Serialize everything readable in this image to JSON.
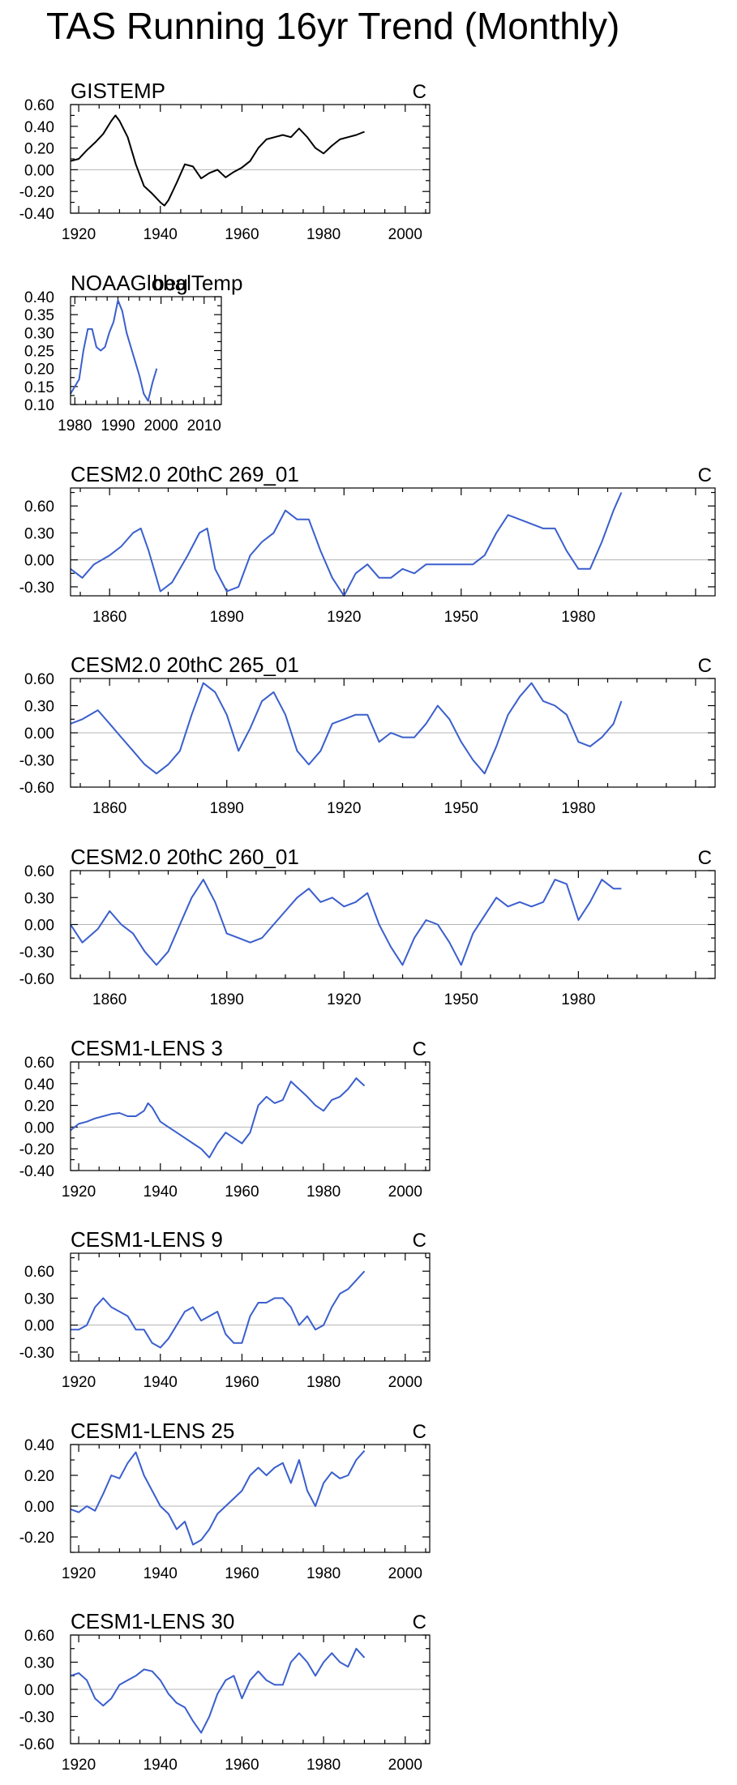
{
  "title": "TAS Running 16yr Trend (Monthly)",
  "colors": {
    "observed": "#000000",
    "model": "#3a5fcd",
    "zero_line": "#b4b4b4",
    "frame": "#000000"
  },
  "chart_data": [
    {
      "type": "line",
      "title": "GISTEMP",
      "unit": "C",
      "color": "#000000",
      "xlim": [
        1918,
        2006
      ],
      "ylim": [
        -0.4,
        0.6
      ],
      "xticks": [
        1920,
        1940,
        1960,
        1980,
        2000
      ],
      "yticks": [
        -0.4,
        -0.2,
        0.0,
        0.2,
        0.4,
        0.6
      ],
      "ytick_labels": [
        "-0.40",
        "-0.20",
        "0.00",
        "0.20",
        "0.40",
        "0.60"
      ],
      "zero_line": true,
      "series": [
        {
          "x": [
            1918,
            1920,
            1922,
            1924,
            1926,
            1928,
            1929,
            1930,
            1932,
            1934,
            1936,
            1938,
            1940,
            1941,
            1942,
            1944,
            1946,
            1948,
            1950,
            1952,
            1954,
            1956,
            1958,
            1960,
            1962,
            1964,
            1966,
            1968,
            1970,
            1972,
            1974,
            1976,
            1978,
            1980,
            1982,
            1984,
            1986,
            1988,
            1990
          ],
          "y": [
            0.08,
            0.1,
            0.18,
            0.25,
            0.33,
            0.45,
            0.5,
            0.45,
            0.3,
            0.05,
            -0.15,
            -0.22,
            -0.3,
            -0.33,
            -0.28,
            -0.12,
            0.05,
            0.03,
            -0.08,
            -0.03,
            0.0,
            -0.07,
            -0.02,
            0.02,
            0.08,
            0.2,
            0.28,
            0.3,
            0.32,
            0.3,
            0.38,
            0.3,
            0.2,
            0.15,
            0.22,
            0.28,
            0.3,
            0.32,
            0.35
          ]
        }
      ]
    },
    {
      "type": "line",
      "title": "NOAAGlobalTemp",
      "subtitle": "beg",
      "unit": "",
      "color": "#3a5fcd",
      "xlim": [
        1979,
        2014
      ],
      "ylim": [
        0.1,
        0.4
      ],
      "xticks": [
        1980,
        1990,
        2000,
        2010
      ],
      "yticks": [
        0.1,
        0.15,
        0.2,
        0.25,
        0.3,
        0.35,
        0.4
      ],
      "ytick_labels": [
        "0.10",
        "0.15",
        "0.20",
        "0.25",
        "0.30",
        "0.35",
        "0.40"
      ],
      "zero_line": false,
      "series": [
        {
          "x": [
            1979,
            1980,
            1981,
            1982,
            1983,
            1984,
            1985,
            1986,
            1987,
            1988,
            1989,
            1990,
            1991,
            1992,
            1993,
            1994,
            1995,
            1996,
            1997,
            1998,
            1999
          ],
          "y": [
            0.13,
            0.15,
            0.17,
            0.25,
            0.31,
            0.31,
            0.26,
            0.25,
            0.26,
            0.3,
            0.33,
            0.39,
            0.36,
            0.3,
            0.26,
            0.22,
            0.18,
            0.13,
            0.11,
            0.16,
            0.2
          ]
        }
      ]
    },
    {
      "type": "line",
      "title": "CESM2.0 20thC 269_01",
      "unit": "C",
      "color": "#3a5fcd",
      "xlim": [
        1850,
        2015
      ],
      "ylim": [
        -0.4,
        0.8
      ],
      "xticks": [
        1860,
        1890,
        1920,
        1950,
        1980
      ],
      "yticks": [
        -0.3,
        0.0,
        0.3,
        0.6
      ],
      "ytick_labels": [
        "-0.30",
        "0.00",
        "0.30",
        "0.60"
      ],
      "zero_line": true,
      "series": [
        {
          "x": [
            1850,
            1853,
            1856,
            1860,
            1863,
            1866,
            1868,
            1870,
            1873,
            1876,
            1880,
            1883,
            1885,
            1887,
            1890,
            1893,
            1896,
            1899,
            1902,
            1905,
            1908,
            1911,
            1914,
            1917,
            1920,
            1923,
            1926,
            1929,
            1932,
            1935,
            1938,
            1941,
            1944,
            1947,
            1950,
            1953,
            1956,
            1959,
            1962,
            1965,
            1968,
            1971,
            1974,
            1977,
            1980,
            1983,
            1986,
            1989,
            1991
          ],
          "y": [
            -0.1,
            -0.2,
            -0.05,
            0.05,
            0.15,
            0.3,
            0.35,
            0.1,
            -0.35,
            -0.25,
            0.05,
            0.3,
            0.35,
            -0.1,
            -0.35,
            -0.3,
            0.05,
            0.2,
            0.3,
            0.55,
            0.45,
            0.45,
            0.1,
            -0.2,
            -0.4,
            -0.15,
            -0.05,
            -0.2,
            -0.2,
            -0.1,
            -0.15,
            -0.05,
            -0.05,
            -0.05,
            -0.05,
            -0.05,
            0.05,
            0.3,
            0.5,
            0.45,
            0.4,
            0.35,
            0.35,
            0.1,
            -0.1,
            -0.1,
            0.2,
            0.55,
            0.75
          ]
        }
      ]
    },
    {
      "type": "line",
      "title": "CESM2.0 20thC 265_01",
      "unit": "C",
      "color": "#3a5fcd",
      "xlim": [
        1850,
        2015
      ],
      "ylim": [
        -0.6,
        0.6
      ],
      "xticks": [
        1860,
        1890,
        1920,
        1950,
        1980
      ],
      "yticks": [
        -0.6,
        -0.3,
        0.0,
        0.3,
        0.6
      ],
      "ytick_labels": [
        "-0.60",
        "-0.30",
        "0.00",
        "0.30",
        "0.60"
      ],
      "zero_line": true,
      "series": [
        {
          "x": [
            1850,
            1853,
            1857,
            1860,
            1863,
            1866,
            1869,
            1872,
            1875,
            1878,
            1881,
            1884,
            1887,
            1890,
            1893,
            1896,
            1899,
            1902,
            1905,
            1908,
            1911,
            1914,
            1917,
            1920,
            1923,
            1926,
            1929,
            1932,
            1935,
            1938,
            1941,
            1944,
            1947,
            1950,
            1953,
            1956,
            1959,
            1962,
            1965,
            1968,
            1971,
            1974,
            1977,
            1980,
            1983,
            1986,
            1989,
            1991
          ],
          "y": [
            0.1,
            0.15,
            0.25,
            0.1,
            -0.05,
            -0.2,
            -0.35,
            -0.45,
            -0.35,
            -0.2,
            0.2,
            0.55,
            0.45,
            0.2,
            -0.2,
            0.05,
            0.35,
            0.45,
            0.2,
            -0.2,
            -0.35,
            -0.2,
            0.1,
            0.15,
            0.2,
            0.2,
            -0.1,
            0.0,
            -0.05,
            -0.05,
            0.1,
            0.3,
            0.15,
            -0.1,
            -0.3,
            -0.45,
            -0.15,
            0.2,
            0.4,
            0.55,
            0.35,
            0.3,
            0.2,
            -0.1,
            -0.15,
            -0.05,
            0.1,
            0.35
          ]
        }
      ]
    },
    {
      "type": "line",
      "title": "CESM2.0 20thC 260_01",
      "unit": "C",
      "color": "#3a5fcd",
      "xlim": [
        1850,
        2015
      ],
      "ylim": [
        -0.6,
        0.6
      ],
      "xticks": [
        1860,
        1890,
        1920,
        1950,
        1980
      ],
      "yticks": [
        -0.6,
        -0.3,
        0.0,
        0.3,
        0.6
      ],
      "ytick_labels": [
        "-0.60",
        "-0.30",
        "0.00",
        "0.30",
        "0.60"
      ],
      "zero_line": true,
      "series": [
        {
          "x": [
            1850,
            1853,
            1857,
            1860,
            1863,
            1866,
            1869,
            1872,
            1875,
            1878,
            1881,
            1884,
            1887,
            1890,
            1893,
            1896,
            1899,
            1902,
            1905,
            1908,
            1911,
            1914,
            1917,
            1920,
            1923,
            1926,
            1929,
            1932,
            1935,
            1938,
            1941,
            1944,
            1947,
            1950,
            1953,
            1956,
            1959,
            1962,
            1965,
            1968,
            1971,
            1974,
            1977,
            1980,
            1983,
            1986,
            1989,
            1991
          ],
          "y": [
            0.0,
            -0.2,
            -0.05,
            0.15,
            0.0,
            -0.1,
            -0.3,
            -0.45,
            -0.3,
            0.0,
            0.3,
            0.5,
            0.25,
            -0.1,
            -0.15,
            -0.2,
            -0.15,
            0.0,
            0.15,
            0.3,
            0.4,
            0.25,
            0.3,
            0.2,
            0.25,
            0.35,
            0.0,
            -0.25,
            -0.45,
            -0.15,
            0.05,
            0.0,
            -0.2,
            -0.45,
            -0.1,
            0.1,
            0.3,
            0.2,
            0.25,
            0.2,
            0.25,
            0.5,
            0.45,
            0.05,
            0.25,
            0.5,
            0.4,
            0.4
          ]
        }
      ]
    },
    {
      "type": "line",
      "title": "CESM1-LENS 3",
      "unit": "C",
      "color": "#3a5fcd",
      "xlim": [
        1918,
        2006
      ],
      "ylim": [
        -0.4,
        0.6
      ],
      "xticks": [
        1920,
        1940,
        1960,
        1980,
        2000
      ],
      "yticks": [
        -0.4,
        -0.2,
        0.0,
        0.2,
        0.4,
        0.6
      ],
      "ytick_labels": [
        "-0.40",
        "-0.20",
        "0.00",
        "0.20",
        "0.40",
        "0.60"
      ],
      "zero_line": true,
      "series": [
        {
          "x": [
            1918,
            1920,
            1922,
            1924,
            1926,
            1928,
            1930,
            1932,
            1934,
            1936,
            1937,
            1938,
            1940,
            1942,
            1944,
            1946,
            1948,
            1950,
            1952,
            1954,
            1956,
            1958,
            1960,
            1962,
            1964,
            1966,
            1968,
            1970,
            1972,
            1974,
            1976,
            1978,
            1980,
            1982,
            1984,
            1986,
            1988,
            1990
          ],
          "y": [
            -0.03,
            0.03,
            0.05,
            0.08,
            0.1,
            0.12,
            0.13,
            0.1,
            0.1,
            0.15,
            0.22,
            0.18,
            0.05,
            0.0,
            -0.05,
            -0.1,
            -0.15,
            -0.2,
            -0.28,
            -0.15,
            -0.05,
            -0.1,
            -0.15,
            -0.05,
            0.2,
            0.28,
            0.22,
            0.25,
            0.42,
            0.35,
            0.28,
            0.2,
            0.15,
            0.25,
            0.28,
            0.35,
            0.45,
            0.38
          ]
        }
      ]
    },
    {
      "type": "line",
      "title": "CESM1-LENS 9",
      "unit": "C",
      "color": "#3a5fcd",
      "xlim": [
        1918,
        2006
      ],
      "ylim": [
        -0.4,
        0.8
      ],
      "xticks": [
        1920,
        1940,
        1960,
        1980,
        2000
      ],
      "yticks": [
        -0.3,
        0.0,
        0.3,
        0.6
      ],
      "ytick_labels": [
        "-0.30",
        "0.00",
        "0.30",
        "0.60"
      ],
      "zero_line": true,
      "series": [
        {
          "x": [
            1918,
            1920,
            1922,
            1924,
            1926,
            1928,
            1930,
            1932,
            1934,
            1936,
            1938,
            1940,
            1942,
            1944,
            1946,
            1948,
            1950,
            1952,
            1954,
            1956,
            1958,
            1960,
            1962,
            1964,
            1966,
            1968,
            1970,
            1972,
            1974,
            1976,
            1978,
            1980,
            1982,
            1984,
            1986,
            1988,
            1990
          ],
          "y": [
            -0.05,
            -0.05,
            0.0,
            0.2,
            0.3,
            0.2,
            0.15,
            0.1,
            -0.05,
            -0.05,
            -0.2,
            -0.25,
            -0.15,
            0.0,
            0.15,
            0.2,
            0.05,
            0.1,
            0.15,
            -0.1,
            -0.2,
            -0.2,
            0.1,
            0.25,
            0.25,
            0.3,
            0.3,
            0.2,
            0.0,
            0.1,
            -0.05,
            0.0,
            0.2,
            0.35,
            0.4,
            0.5,
            0.6
          ]
        }
      ]
    },
    {
      "type": "line",
      "title": "CESM1-LENS 25",
      "unit": "C",
      "color": "#3a5fcd",
      "xlim": [
        1918,
        2006
      ],
      "ylim": [
        -0.3,
        0.4
      ],
      "xticks": [
        1920,
        1940,
        1960,
        1980,
        2000
      ],
      "yticks": [
        -0.2,
        0.0,
        0.2,
        0.4
      ],
      "ytick_labels": [
        "-0.20",
        "0.00",
        "0.20",
        "0.40"
      ],
      "zero_line": true,
      "series": [
        {
          "x": [
            1918,
            1920,
            1922,
            1924,
            1926,
            1928,
            1930,
            1932,
            1934,
            1936,
            1938,
            1940,
            1942,
            1944,
            1946,
            1948,
            1950,
            1952,
            1954,
            1956,
            1958,
            1960,
            1962,
            1964,
            1966,
            1968,
            1970,
            1972,
            1974,
            1976,
            1978,
            1980,
            1982,
            1984,
            1986,
            1988,
            1990
          ],
          "y": [
            -0.02,
            -0.04,
            0.0,
            -0.03,
            0.08,
            0.2,
            0.18,
            0.28,
            0.35,
            0.2,
            0.1,
            0.0,
            -0.05,
            -0.15,
            -0.1,
            -0.25,
            -0.22,
            -0.15,
            -0.05,
            0.0,
            0.05,
            0.1,
            0.2,
            0.25,
            0.2,
            0.25,
            0.28,
            0.15,
            0.3,
            0.1,
            0.0,
            0.15,
            0.22,
            0.18,
            0.2,
            0.3,
            0.36
          ]
        }
      ]
    },
    {
      "type": "line",
      "title": "CESM1-LENS 30",
      "unit": "C",
      "color": "#3a5fcd",
      "xlim": [
        1918,
        2006
      ],
      "ylim": [
        -0.6,
        0.6
      ],
      "xticks": [
        1920,
        1940,
        1960,
        1980,
        2000
      ],
      "yticks": [
        -0.6,
        -0.3,
        0.0,
        0.3,
        0.6
      ],
      "ytick_labels": [
        "-0.60",
        "-0.30",
        "0.00",
        "0.30",
        "0.60"
      ],
      "zero_line": true,
      "series": [
        {
          "x": [
            1918,
            1920,
            1922,
            1924,
            1926,
            1928,
            1930,
            1932,
            1934,
            1936,
            1938,
            1940,
            1942,
            1944,
            1946,
            1948,
            1950,
            1952,
            1954,
            1956,
            1958,
            1960,
            1962,
            1964,
            1966,
            1968,
            1970,
            1972,
            1974,
            1976,
            1978,
            1980,
            1982,
            1984,
            1986,
            1988,
            1990
          ],
          "y": [
            0.15,
            0.18,
            0.1,
            -0.1,
            -0.18,
            -0.1,
            0.05,
            0.1,
            0.15,
            0.22,
            0.2,
            0.1,
            -0.05,
            -0.15,
            -0.2,
            -0.35,
            -0.48,
            -0.3,
            -0.05,
            0.1,
            0.15,
            -0.1,
            0.1,
            0.2,
            0.1,
            0.05,
            0.05,
            0.3,
            0.4,
            0.3,
            0.15,
            0.3,
            0.4,
            0.3,
            0.25,
            0.45,
            0.35
          ]
        }
      ]
    }
  ]
}
